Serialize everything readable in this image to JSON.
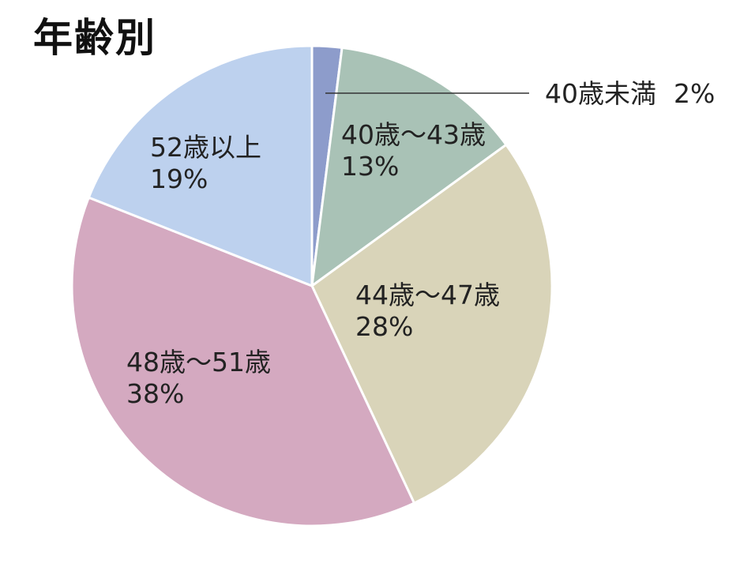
{
  "chart_data": {
    "type": "pie",
    "title": "年齢別",
    "slices": [
      {
        "label": "40歳未満",
        "value": 2,
        "value_label": "2%",
        "color": "#8d9ccb"
      },
      {
        "label": "40歳～43歳",
        "value": 13,
        "value_label": "13%",
        "color": "#a9c2b6"
      },
      {
        "label": "44歳～47歳",
        "value": 28,
        "value_label": "28%",
        "color": "#d9d4b9"
      },
      {
        "label": "48歳～51歳",
        "value": 38,
        "value_label": "38%",
        "color": "#d4a9c0"
      },
      {
        "label": "52歳以上",
        "value": 19,
        "value_label": "19%",
        "color": "#bdd1ee"
      }
    ],
    "start_angle": "top",
    "direction": "clockwise",
    "legend": "none"
  }
}
